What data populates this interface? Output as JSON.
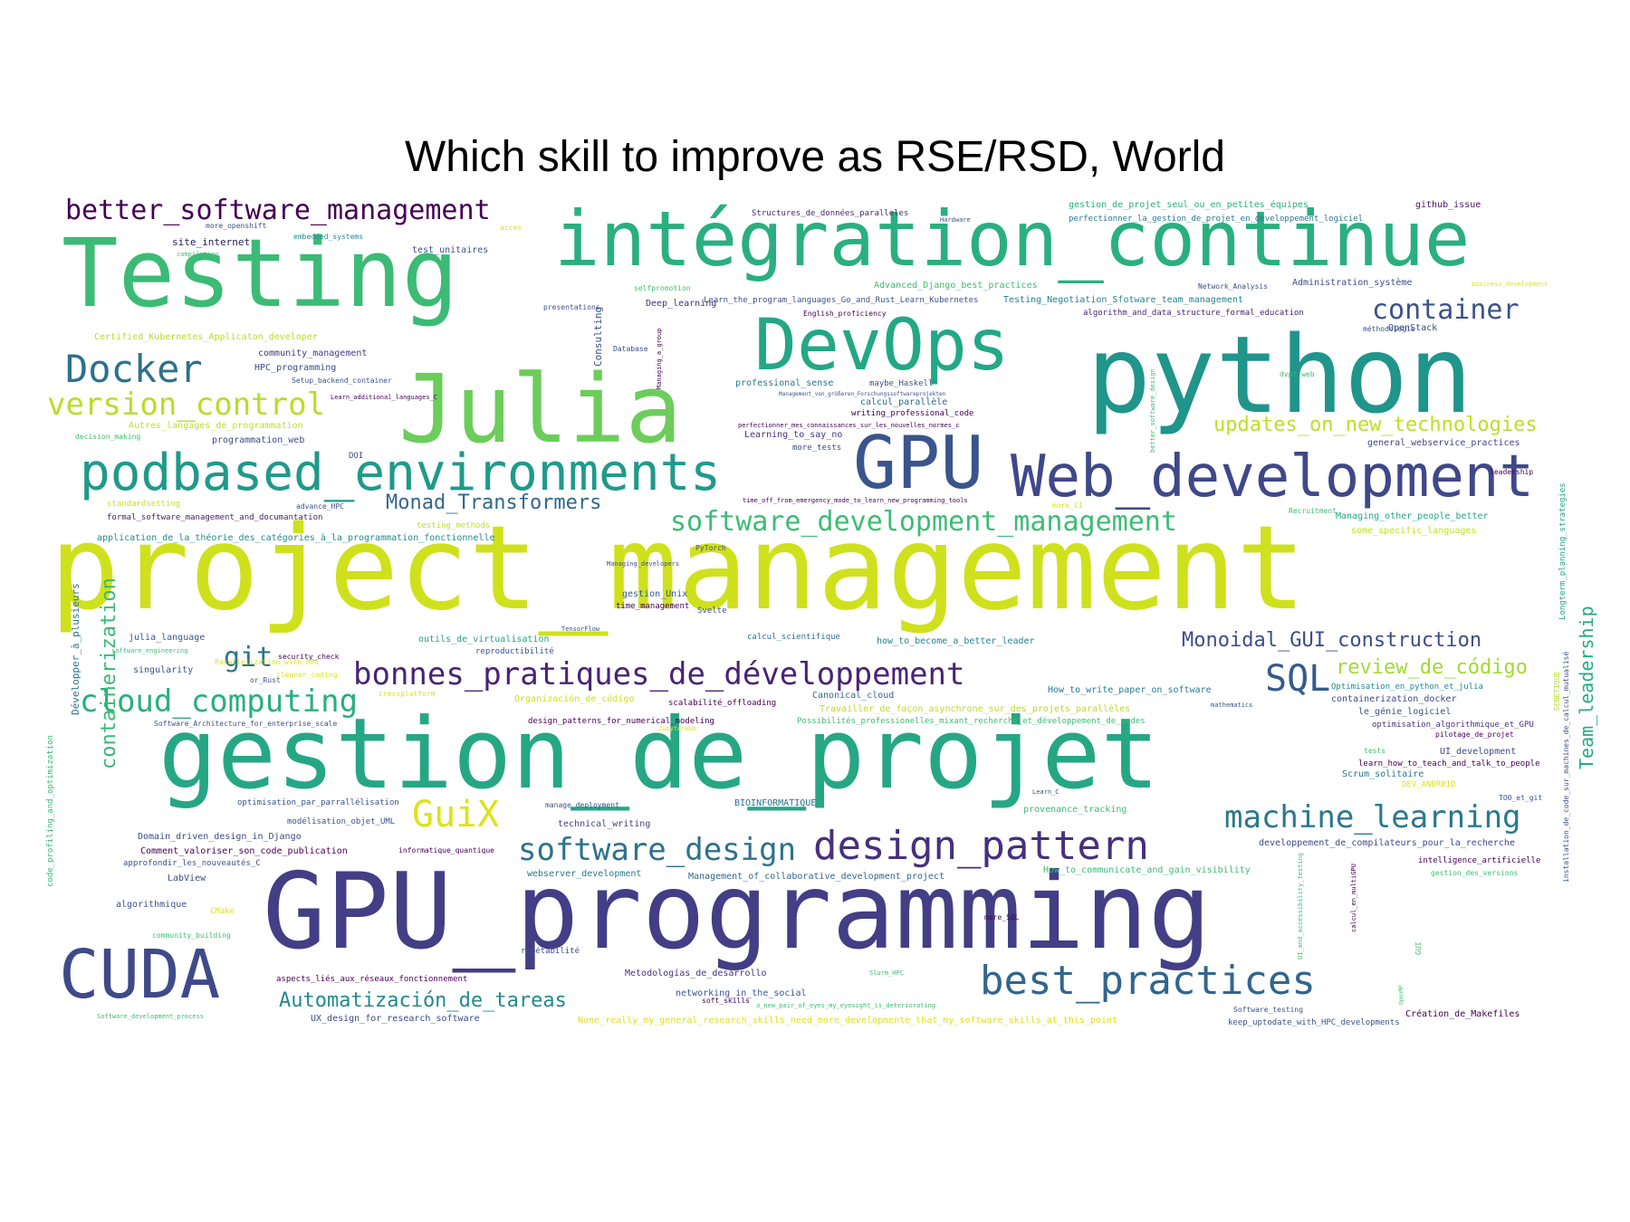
{
  "title": "Which skill to improve as RSE/RSD, World",
  "chart_data": {
    "type": "wordcloud",
    "title": "Which skill to improve as RSE/RSD, World",
    "words": [
      {
        "text": "project_management",
        "weight": 100,
        "color": "#cfe11c"
      },
      {
        "text": "GPU_programming",
        "weight": 92,
        "color": "#433e85"
      },
      {
        "text": "gestion_de_projet",
        "weight": 84,
        "color": "#26a784"
      },
      {
        "text": "python",
        "weight": 80,
        "color": "#1f958b"
      },
      {
        "text": "Testing",
        "weight": 76,
        "color": "#3bbb75"
      },
      {
        "text": "Julia",
        "weight": 74,
        "color": "#6ccd5a"
      },
      {
        "text": "intégration_continue",
        "weight": 70,
        "color": "#2aaf7f"
      },
      {
        "text": "GPU",
        "weight": 60,
        "color": "#39558c"
      },
      {
        "text": "DevOps",
        "weight": 58,
        "color": "#22a884"
      },
      {
        "text": "Web_development",
        "weight": 54,
        "color": "#3f4889"
      },
      {
        "text": "CUDA",
        "weight": 52,
        "color": "#3e4a89"
      },
      {
        "text": "podbased_environments",
        "weight": 48,
        "color": "#1f9a8a"
      },
      {
        "text": "design_pattern",
        "weight": 40,
        "color": "#46307e"
      },
      {
        "text": "best_practices",
        "weight": 38,
        "color": "#31668e"
      },
      {
        "text": "Docker",
        "weight": 36,
        "color": "#2d718e"
      },
      {
        "text": "bonnes_pratiques_de_développement",
        "weight": 32,
        "color": "#482475"
      },
      {
        "text": "machine_learning",
        "weight": 32,
        "color": "#2a788e"
      },
      {
        "text": "software_design",
        "weight": 32,
        "color": "#2c728e"
      },
      {
        "text": "cloud_computing",
        "weight": 32,
        "color": "#29af7f"
      },
      {
        "text": "GuiX",
        "weight": 32,
        "color": "#dde318"
      },
      {
        "text": "SQL",
        "weight": 32,
        "color": "#375a8c"
      },
      {
        "text": "version_control",
        "weight": 30,
        "color": "#b8de29"
      },
      {
        "text": "software_development_management",
        "weight": 28,
        "color": "#3dbc74"
      },
      {
        "text": "container",
        "weight": 28,
        "color": "#3b528b"
      },
      {
        "text": "better_software_management",
        "weight": 28,
        "color": "#440154"
      },
      {
        "text": "git",
        "weight": 28,
        "color": "#2c738e"
      },
      {
        "text": "Automatización_de_tareas",
        "weight": 22,
        "color": "#23898e"
      },
      {
        "text": "Monad_Transformers",
        "weight": 22,
        "color": "#31688e"
      },
      {
        "text": "Monoidal_GUI_construction",
        "weight": 22,
        "color": "#3e4c8a"
      },
      {
        "text": "updates_on_new_technologies",
        "weight": 22,
        "color": "#bddf26"
      },
      {
        "text": "review_de_código",
        "weight": 22,
        "color": "#a2da37"
      },
      {
        "text": "containerization",
        "weight": 20,
        "color": "#3aba76"
      },
      {
        "text": "Team_leadership",
        "weight": 20,
        "color": "#25ac82"
      },
      {
        "text": "Consulting",
        "weight": 11,
        "color": "#3b528b"
      },
      {
        "text": "Développer_à_plusieurs",
        "weight": 11,
        "color": "#2c728e"
      },
      {
        "text": "code_profiling_and_optimization",
        "weight": 9,
        "color": "#3aba76"
      },
      {
        "text": "Longterm_planning_strategies",
        "weight": 9,
        "color": "#22a884"
      },
      {
        "text": "installation_de_code_sur_machines_de_calcul_mutualisé",
        "weight": 8,
        "color": "#3b528b"
      },
      {
        "text": "GENETIQUE",
        "weight": 8,
        "color": "#b5de2b"
      },
      {
        "text": "site_internet",
        "weight": 11,
        "color": "#1f1e5a"
      },
      {
        "text": "embedded_systems",
        "weight": 8,
        "color": "#23898e"
      },
      {
        "text": "test_unitaires",
        "weight": 10,
        "color": "#3b528b"
      },
      {
        "text": "Structures_de_données_paralleles",
        "weight": 9,
        "color": "#482878"
      },
      {
        "text": "gestion_de_projet_seul_ou_en_petites_équipes",
        "weight": 10,
        "color": "#29af7f"
      },
      {
        "text": "perfectionner_la_gestion_de_projet_en_développement_logiciel",
        "weight": 9,
        "color": "#2a788e"
      },
      {
        "text": "github_issue",
        "weight": 10,
        "color": "#481668"
      },
      {
        "text": "Advanced_Django_best_practices",
        "weight": 10,
        "color": "#3dbc74"
      },
      {
        "text": "Administration_système",
        "weight": 10,
        "color": "#3e4a89"
      },
      {
        "text": "Learn_the_program_languages_Go_and_Rust_Learn_Kubernetes",
        "weight": 9,
        "color": "#3b528b"
      },
      {
        "text": "Testing_Negotiation_Sfotware_team_management",
        "weight": 10,
        "color": "#25848e"
      },
      {
        "text": "algorithm_and_data_structure_formal_education",
        "weight": 9,
        "color": "#482475"
      },
      {
        "text": "Deep_learning",
        "weight": 10,
        "color": "#46327e"
      },
      {
        "text": "Certified_Kubernetes_Applicaton_developer",
        "weight": 10,
        "color": "#b5de2b"
      },
      {
        "text": "community_management",
        "weight": 10,
        "color": "#443a83"
      },
      {
        "text": "HPC_programming",
        "weight": 10,
        "color": "#3e4a89"
      },
      {
        "text": "Setup_backend_container",
        "weight": 8,
        "color": "#3b528b"
      },
      {
        "text": "OpenStack",
        "weight": 10,
        "color": "#3e4a89"
      },
      {
        "text": "professional_sense",
        "weight": 10,
        "color": "#2a788e"
      },
      {
        "text": "calcul_parallèle",
        "weight": 10,
        "color": "#31688e"
      },
      {
        "text": "writing_professional_code",
        "weight": 9,
        "color": "#440154"
      },
      {
        "text": "Autres_langages_de_programmation",
        "weight": 10,
        "color": "#c2df23"
      },
      {
        "text": "programmation_web",
        "weight": 10,
        "color": "#3e4a89"
      },
      {
        "text": "Learning_to_say_no",
        "weight": 10,
        "color": "#46337f"
      },
      {
        "text": "general_webservice_practices",
        "weight": 10,
        "color": "#404688"
      },
      {
        "text": "DOI",
        "weight": 9,
        "color": "#3e4a89"
      },
      {
        "text": "formal_software_management_and_documantation",
        "weight": 9,
        "color": "#481c6e"
      },
      {
        "text": "application_de_la_théorie_des_catégories_à_la_programmation_fonctionnelle",
        "weight": 10,
        "color": "#238a8d"
      },
      {
        "text": "testing_methods",
        "weight": 9,
        "color": "#c2df23"
      },
      {
        "text": "standardsetting",
        "weight": 9,
        "color": "#cde11d"
      },
      {
        "text": "Managing_other_people_better",
        "weight": 10,
        "color": "#22a884"
      },
      {
        "text": "some_specific_languages",
        "weight": 10,
        "color": "#c5e021"
      },
      {
        "text": "julia_language",
        "weight": 10,
        "color": "#38588c"
      },
      {
        "text": "outils_de_virtualisation",
        "weight": 10,
        "color": "#20a386"
      },
      {
        "text": "calcul_scientifique",
        "weight": 9,
        "color": "#2d718e"
      },
      {
        "text": "how_to_become_a_better_leader",
        "weight": 10,
        "color": "#25838e"
      },
      {
        "text": "singularity",
        "weight": 10,
        "color": "#3b528b"
      },
      {
        "text": "Organización_de_código",
        "weight": 10,
        "color": "#cde11d"
      },
      {
        "text": "scalabilité_offloading",
        "weight": 9,
        "color": "#440154"
      },
      {
        "text": "Canonical_cloud",
        "weight": 10,
        "color": "#31688e"
      },
      {
        "text": "How_to_write_paper_on_software",
        "weight": 10,
        "color": "#287d8e"
      },
      {
        "text": "Optimisation_en_python_et_julia",
        "weight": 9,
        "color": "#23898e"
      },
      {
        "text": "containerization_docker",
        "weight": 10,
        "color": "#3e4a89"
      },
      {
        "text": "Travailler_de_façon_asynchrone_sur_des_projets_parallèles",
        "weight": 10,
        "color": "#b8de29"
      },
      {
        "text": "le_génie_logiciel",
        "weight": 10,
        "color": "#3b528b"
      },
      {
        "text": "design_patterns_for_numerical_modeling",
        "weight": 9,
        "color": "#440154"
      },
      {
        "text": "Possibilités_professionelles_mixant_recherche_et_développement_de_codes",
        "weight": 9,
        "color": "#3dbc74"
      },
      {
        "text": "optimisation_algorithmique_et_GPU",
        "weight": 9,
        "color": "#463480"
      },
      {
        "text": "Software_Architecture_for_enterprise_scale",
        "weight": 8,
        "color": "#3b528b"
      },
      {
        "text": "UI_development",
        "weight": 10,
        "color": "#3e4a89"
      },
      {
        "text": "learn_how_to_teach_and_talk_to_people",
        "weight": 9,
        "color": "#440154"
      },
      {
        "text": "Scrum_solitaire",
        "weight": 10,
        "color": "#2a788e"
      },
      {
        "text": "DEV_ANDROID",
        "weight": 9,
        "color": "#dde318"
      },
      {
        "text": "optimisation_par_parrallélisation",
        "weight": 9,
        "color": "#3b528b"
      },
      {
        "text": "BIOINFORMATIQUE",
        "weight": 10,
        "color": "#2c728e"
      },
      {
        "text": "provenance_tracking",
        "weight": 10,
        "color": "#3dbc74"
      },
      {
        "text": "modélisation_objet_UML",
        "weight": 9,
        "color": "#3b528b"
      },
      {
        "text": "Domain_driven_design_in_Django",
        "weight": 10,
        "color": "#3e4a89"
      },
      {
        "text": "Comment_valoriser_son_code_publication",
        "weight": 10,
        "color": "#440154"
      },
      {
        "text": "approfondir_les_nouveautés_C",
        "weight": 9,
        "color": "#3b528b"
      },
      {
        "text": "technical_writing",
        "weight": 10,
        "color": "#404688"
      },
      {
        "text": "webserver_development",
        "weight": 10,
        "color": "#2a788e"
      },
      {
        "text": "Management_of_collaborative_development_project",
        "weight": 10,
        "color": "#31688e"
      },
      {
        "text": "How_to_communicate_and_gain_visibility",
        "weight": 10,
        "color": "#3dbc74"
      },
      {
        "text": "developpement_de_compilateurs_pour_la_recherche",
        "weight": 10,
        "color": "#3e4a89"
      },
      {
        "text": "intelligence_artificielle",
        "weight": 9,
        "color": "#440154"
      },
      {
        "text": "algorithmique",
        "weight": 10,
        "color": "#3b528b"
      },
      {
        "text": "LabView",
        "weight": 10,
        "color": "#3e4a89"
      },
      {
        "text": "CMake",
        "weight": 9,
        "color": "#dde318"
      },
      {
        "text": "Metodologías_de_desarrollo",
        "weight": 10,
        "color": "#46337f"
      },
      {
        "text": "networking_in_the_social",
        "weight": 10,
        "color": "#38588c"
      },
      {
        "text": "aspects_liés_aux_réseaux_fonctionnement",
        "weight": 9,
        "color": "#440154"
      },
      {
        "text": "répétabilité",
        "weight": 9,
        "color": "#3b528b"
      },
      {
        "text": "UX_design_for_research_software",
        "weight": 10,
        "color": "#3e4a89"
      },
      {
        "text": "None_really_my_general_research_skills_need_more_developmente_that_my_software_skills_at_this_point",
        "weight": 10,
        "color": "#dde318"
      },
      {
        "text": "Création_de_Makefiles",
        "weight": 10,
        "color": "#440154"
      },
      {
        "text": "keep_uptodate_with_HPC_developments",
        "weight": 9,
        "color": "#3b528b"
      },
      {
        "text": "Software_testing",
        "weight": 8,
        "color": "#3b528b"
      },
      {
        "text": "security_check",
        "weight": 8,
        "color": "#440154"
      },
      {
        "text": "reproductibilité",
        "weight": 9,
        "color": "#3b528b"
      },
      {
        "text": "gestion_Unix",
        "weight": 10,
        "color": "#38588c"
      },
      {
        "text": "time_management",
        "weight": 9,
        "color": "#440154"
      },
      {
        "text": "Svelte",
        "weight": 9,
        "color": "#3b528b"
      },
      {
        "text": "PyTorch",
        "weight": 8,
        "color": "#3e4a89"
      },
      {
        "text": "advance_HPC",
        "weight": 8,
        "color": "#3b528b"
      },
      {
        "text": "more_tests",
        "weight": 9,
        "color": "#3e4a89"
      },
      {
        "text": "maybe_Haskell",
        "weight": 9,
        "color": "#3b528b"
      },
      {
        "text": "Database",
        "weight": 8,
        "color": "#3e4a89"
      },
      {
        "text": "presentations",
        "weight": 8,
        "color": "#3b528b"
      },
      {
        "text": "selfpromotion",
        "weight": 8,
        "color": "#3dbc74"
      },
      {
        "text": "English_proficiency",
        "weight": 8,
        "color": "#440154"
      },
      {
        "text": "Network_Analysis",
        "weight": 8,
        "color": "#3e4a89"
      },
      {
        "text": "méthodologie",
        "weight": 8,
        "color": "#3b528b"
      },
      {
        "text": "dvpt_web",
        "weight": 8,
        "color": "#3dbc74"
      },
      {
        "text": "leadership",
        "weight": 8,
        "color": "#440154"
      },
      {
        "text": "Recruitment",
        "weight": 8,
        "color": "#3dbc74"
      },
      {
        "text": "more_CI",
        "weight": 8,
        "color": "#dde318"
      },
      {
        "text": "mathematics",
        "weight": 7,
        "color": "#3b528b"
      },
      {
        "text": "tests",
        "weight": 8,
        "color": "#3dbc74"
      },
      {
        "text": "Learn_C",
        "weight": 7,
        "color": "#3b528b"
      },
      {
        "text": "more_SQL",
        "weight": 8,
        "color": "#440154"
      },
      {
        "text": "TensorFlow",
        "weight": 7,
        "color": "#3b528b"
      },
      {
        "text": "acces",
        "weight": 8,
        "color": "#dde318"
      },
      {
        "text": "Hardware",
        "weight": 7,
        "color": "#3b528b"
      },
      {
        "text": "compilation",
        "weight": 7,
        "color": "#3dbc74"
      },
      {
        "text": "more_openshift",
        "weight": 8,
        "color": "#3b528b"
      },
      {
        "text": "business_development",
        "weight": 7,
        "color": "#dde318"
      },
      {
        "text": "decision_making",
        "weight": 8,
        "color": "#3dbc74"
      },
      {
        "text": "pilotage_de_projet",
        "weight": 8,
        "color": "#440154"
      },
      {
        "text": "TOO_et_git",
        "weight": 8,
        "color": "#3b528b"
      },
      {
        "text": "gestion_des_versions",
        "weight": 8,
        "color": "#3dbc74"
      },
      {
        "text": "Learn_additional_languages_C",
        "weight": 7,
        "color": "#440154"
      },
      {
        "text": "cleaner_coding",
        "weight": 8,
        "color": "#dde318"
      },
      {
        "text": "or_Rust",
        "weight": 8,
        "color": "#3b528b"
      },
      {
        "text": "crossplatform",
        "weight": 8,
        "color": "#dde318"
      },
      {
        "text": "software_engineering",
        "weight": 7,
        "color": "#3dbc74"
      },
      {
        "text": "Parallelization_with_MPI",
        "weight": 8,
        "color": "#dde318"
      },
      {
        "text": "community_building",
        "weight": 8,
        "color": "#3dbc74"
      },
      {
        "text": "informatique_quantique",
        "weight": 8,
        "color": "#440154"
      },
      {
        "text": "JupyterHub",
        "weight": 7,
        "color": "#dde318"
      },
      {
        "text": "manage_deployment",
        "weight": 8,
        "color": "#3b528b"
      },
      {
        "text": "soft_skills",
        "weight": 8,
        "color": "#440154"
      },
      {
        "text": "Software_development_process",
        "weight": 7,
        "color": "#3dbc74"
      },
      {
        "text": "GUI",
        "weight": 8,
        "color": "#3dbc74"
      },
      {
        "text": "Managing_a_group",
        "weight": 7,
        "color": "#440154"
      },
      {
        "text": "better_software_design",
        "weight": 7,
        "color": "#3dbc74"
      },
      {
        "text": "calcul_en_multiGPU",
        "weight": 7,
        "color": "#440154"
      },
      {
        "text": "UI_and_accessibility_testing",
        "weight": 7,
        "color": "#3dbc74"
      },
      {
        "text": "Management_von_größeren_Forschungssoftwareprojekten",
        "weight": 6,
        "color": "#3b528b"
      },
      {
        "text": "perfectionner_mes_connaissances_sur_les_nouvelles_normes_c",
        "weight": 7,
        "color": "#440154"
      },
      {
        "text": "time_off_from_emergency_mode_to_learn_new_programming_tools",
        "weight": 7,
        "color": "#440154"
      },
      {
        "text": "a_new_pair_of_eyes_my_eyesight_is_deteriorating",
        "weight": 7,
        "color": "#3dbc74"
      },
      {
        "text": "Managing_developers",
        "weight": 7,
        "color": "#3b528b"
      },
      {
        "text": "Slurm_HPC",
        "weight": 7,
        "color": "#3dbc74"
      },
      {
        "text": "OpenMP",
        "weight": 6,
        "color": "#3dbc74"
      }
    ]
  }
}
